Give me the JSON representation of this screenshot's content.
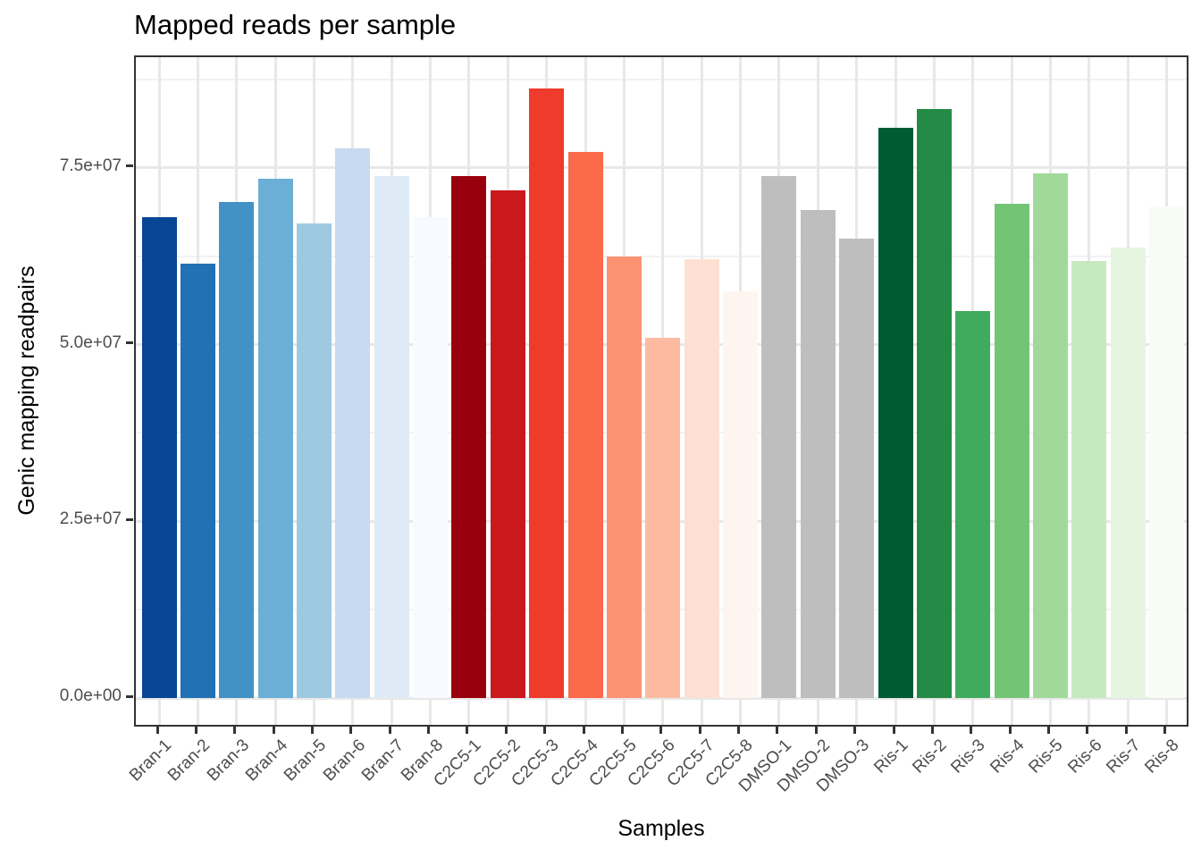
{
  "style": {
    "background": "#FFFFFF",
    "panel_background": "#FFFFFF",
    "panel_border": "#333333",
    "grid_major": "#E8E8E8",
    "grid_minor": "#F2F2F2",
    "tick_mark_color": "#333333",
    "tick_label_color": "#4D4D4D",
    "title_color": "#000000",
    "axis_title_color": "#000000"
  },
  "chart_data": {
    "type": "bar",
    "title": "Mapped reads per sample",
    "xlabel": "Samples",
    "ylabel": "Genic mapping readpairs",
    "legend": "none",
    "grid": true,
    "ylim": [
      0,
      90600000
    ],
    "ytick_values": [
      0,
      25000000,
      50000000,
      75000000
    ],
    "ytick_labels": [
      "0.0e+00",
      "2.5e+07",
      "5.0e+07",
      "7.5e+07"
    ],
    "yminor_values": [
      12500000,
      37500000,
      62500000,
      87500000
    ],
    "categories": [
      "Bran-1",
      "Bran-2",
      "Bran-3",
      "Bran-4",
      "Bran-5",
      "Bran-6",
      "Bran-7",
      "Bran-8",
      "C2C5-1",
      "C2C5-2",
      "C2C5-3",
      "C2C5-4",
      "C2C5-5",
      "C2C5-6",
      "C2C5-7",
      "C2C5-8",
      "DMSO-1",
      "DMSO-2",
      "DMSO-3",
      "Ris-1",
      "Ris-2",
      "Ris-3",
      "Ris-4",
      "Ris-5",
      "Ris-6",
      "Ris-7",
      "Ris-8"
    ],
    "values": [
      68100000,
      61500000,
      70200000,
      73500000,
      67100000,
      77800000,
      73800000,
      68000000,
      73900000,
      71900000,
      86300000,
      77300000,
      62500000,
      51000000,
      62100000,
      57600000,
      73900000,
      69100000,
      65000000,
      80700000,
      83300000,
      54700000,
      69900000,
      74300000,
      61900000,
      63800000,
      69500000
    ],
    "bar_colors": [
      "#084594",
      "#2171B5",
      "#4292C6",
      "#6BAED6",
      "#9ECAE1",
      "#C6DBEF",
      "#DEEBF7",
      "#F7FBFF",
      "#99000D",
      "#CB181D",
      "#EF3B2C",
      "#FB6A4A",
      "#FC9272",
      "#FCBBA1",
      "#FEE0D2",
      "#FFF5F0",
      "#BEBEBE",
      "#BEBEBE",
      "#BEBEBE",
      "#005A32",
      "#238B45",
      "#41AB5D",
      "#74C476",
      "#A1D99B",
      "#C7E9C0",
      "#E5F5E0",
      "#F7FCF5"
    ]
  }
}
